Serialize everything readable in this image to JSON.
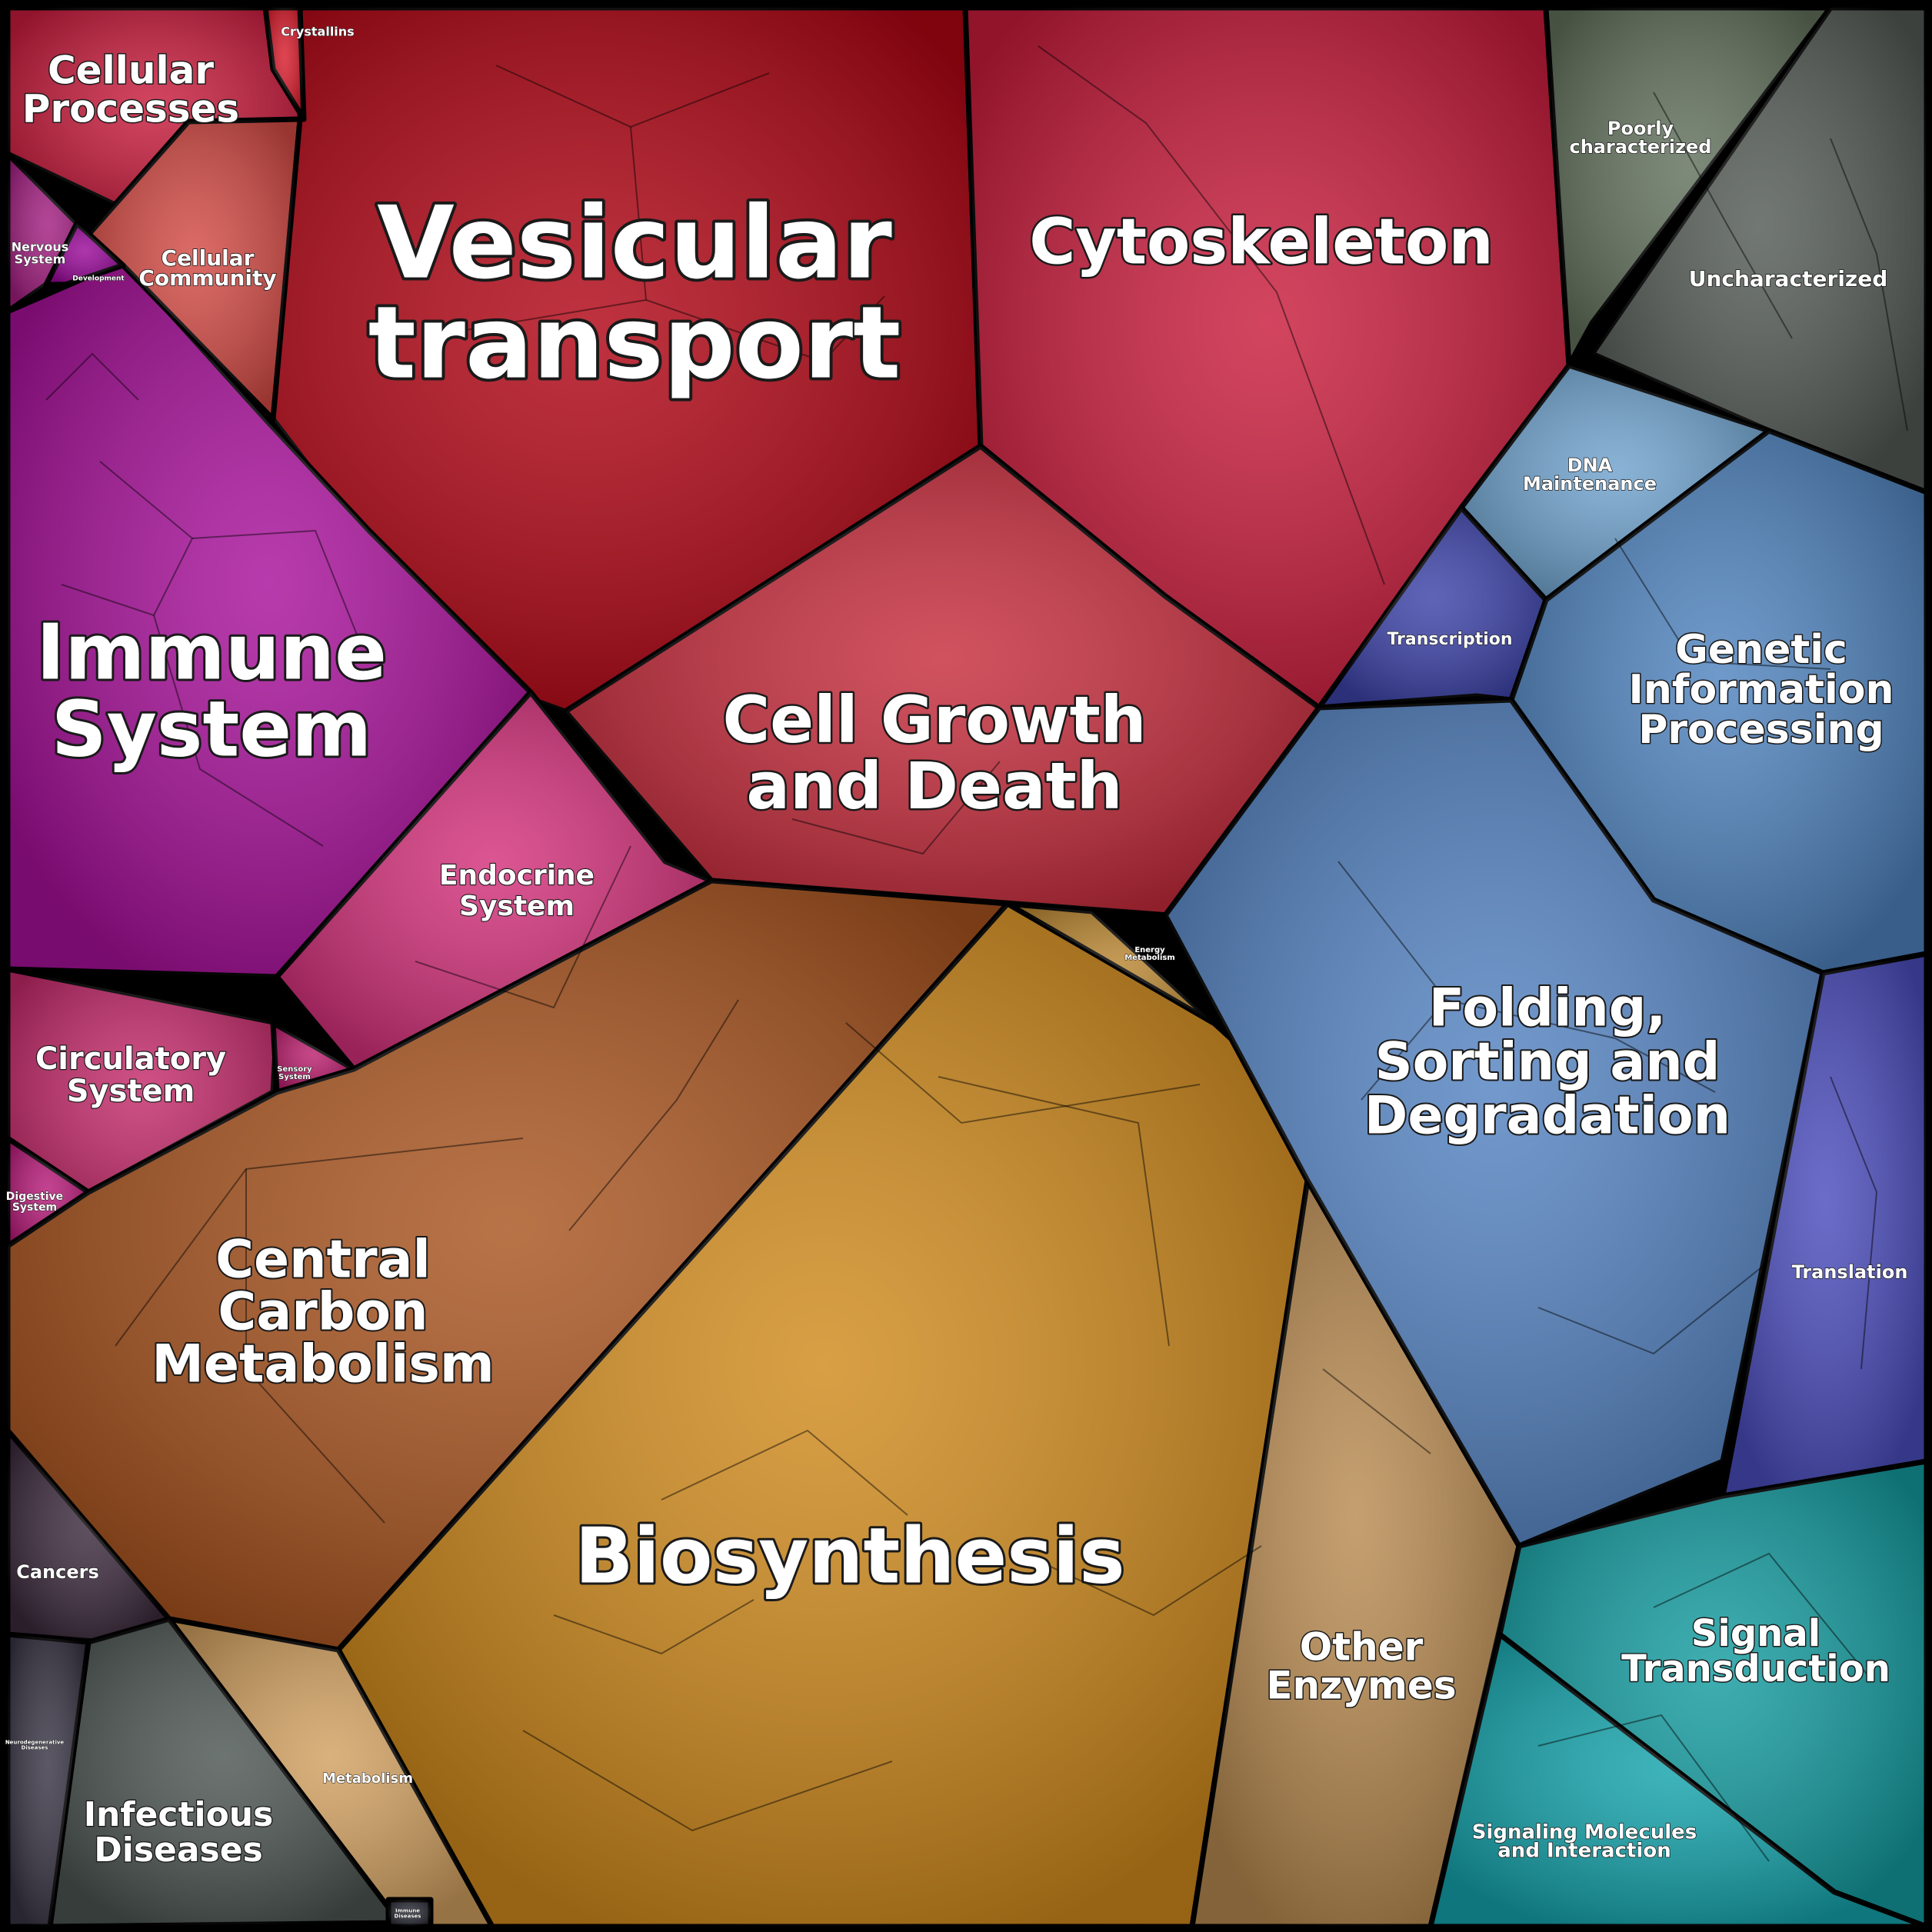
{
  "regions": {
    "vesicular_transport": {
      "label": [
        "Vesicular",
        "transport"
      ],
      "color": "#b00514"
    },
    "cytoskeleton": {
      "label": [
        "Cytoskeleton"
      ],
      "color": "#c91c3c"
    },
    "cell_growth_death": {
      "label": [
        "Cell Growth",
        "and Death"
      ],
      "color": "#c62c3c"
    },
    "immune_system": {
      "label": [
        "Immune",
        "System"
      ],
      "color": "#a8109a"
    },
    "cellular_processes": {
      "label": [
        "Cellular",
        "Processes"
      ],
      "color": "#c81b3c"
    },
    "crystallins": {
      "label": [
        "Crystallins"
      ],
      "color": "#d81c2c"
    },
    "cellular_community": {
      "label": [
        "Cellular",
        "Community"
      ],
      "color": "#d34a44"
    },
    "nervous_system": {
      "label": [
        "Nervous",
        "System"
      ],
      "color": "#a21e80"
    },
    "development": {
      "label": [
        "Development"
      ],
      "color": "#9a0a9a"
    },
    "endocrine_system": {
      "label": [
        "Endocrine",
        "System"
      ],
      "color": "#d3307a"
    },
    "circulatory_system": {
      "label": [
        "Circulatory",
        "System"
      ],
      "color": "#c42a6a"
    },
    "sensory_system": {
      "label": [
        "Sensory",
        "System"
      ],
      "color": "#bb1f6e"
    },
    "digestive_system": {
      "label": [
        "Digestive",
        "System"
      ],
      "color": "#b61a78"
    },
    "central_carbon_metabolism": {
      "label": [
        "Central",
        "Carbon",
        "Metabolism"
      ],
      "color": "#a9541f"
    },
    "biosynthesis": {
      "label": [
        "Biosynthesis"
      ],
      "color": "#d08a1c"
    },
    "energy_metabolism": {
      "label": [
        "Energy",
        "Metabolism"
      ],
      "color": "#b88530"
    },
    "other_enzymes": {
      "label": [
        "Other",
        "Enzymes"
      ],
      "color": "#b88a50"
    },
    "metabolism": {
      "label": [
        "Metabolism"
      ],
      "color": "#d1a060"
    },
    "cancers": {
      "label": [
        "Cancers"
      ],
      "color": "#3c2a3c"
    },
    "infectious_diseases": {
      "label": [
        "Infectious",
        "Diseases"
      ],
      "color": "#4c5552"
    },
    "neurodegenerative_diseases": {
      "label": [
        "Neurodegenerative",
        "Diseases"
      ],
      "color": "#383444"
    },
    "immune_diseases": {
      "label": [
        "Immune",
        "Diseases"
      ],
      "color": "#2a2a36"
    },
    "poorly_characterized": {
      "label": [
        "Poorly",
        "characterized"
      ],
      "color": "#62715c"
    },
    "uncharacterized": {
      "label": [
        "Uncharacterized"
      ],
      "color": "#535a55"
    },
    "dna_maintenance": {
      "label": [
        "DNA",
        "Maintenance"
      ],
      "color": "#6fa2cd"
    },
    "transcription": {
      "label": [
        "Transcription"
      ],
      "color": "#3c42a8"
    },
    "genetic_information_processing": {
      "label": [
        "Genetic",
        "Information",
        "Processing"
      ],
      "color": "#4f83be"
    },
    "folding_sorting_degradation": {
      "label": [
        "Folding,",
        "Sorting and",
        "Degradation"
      ],
      "color": "#5483c2"
    },
    "translation": {
      "label": [
        "Translation"
      ],
      "color": "#4a4cbc"
    },
    "signal_transduction": {
      "label": [
        "Signal",
        "Transduction"
      ],
      "color": "#149ca0"
    },
    "signaling_molecules": {
      "label": [
        "Signaling Molecules",
        "and Interaction"
      ],
      "color": "#14a4ac"
    }
  }
}
